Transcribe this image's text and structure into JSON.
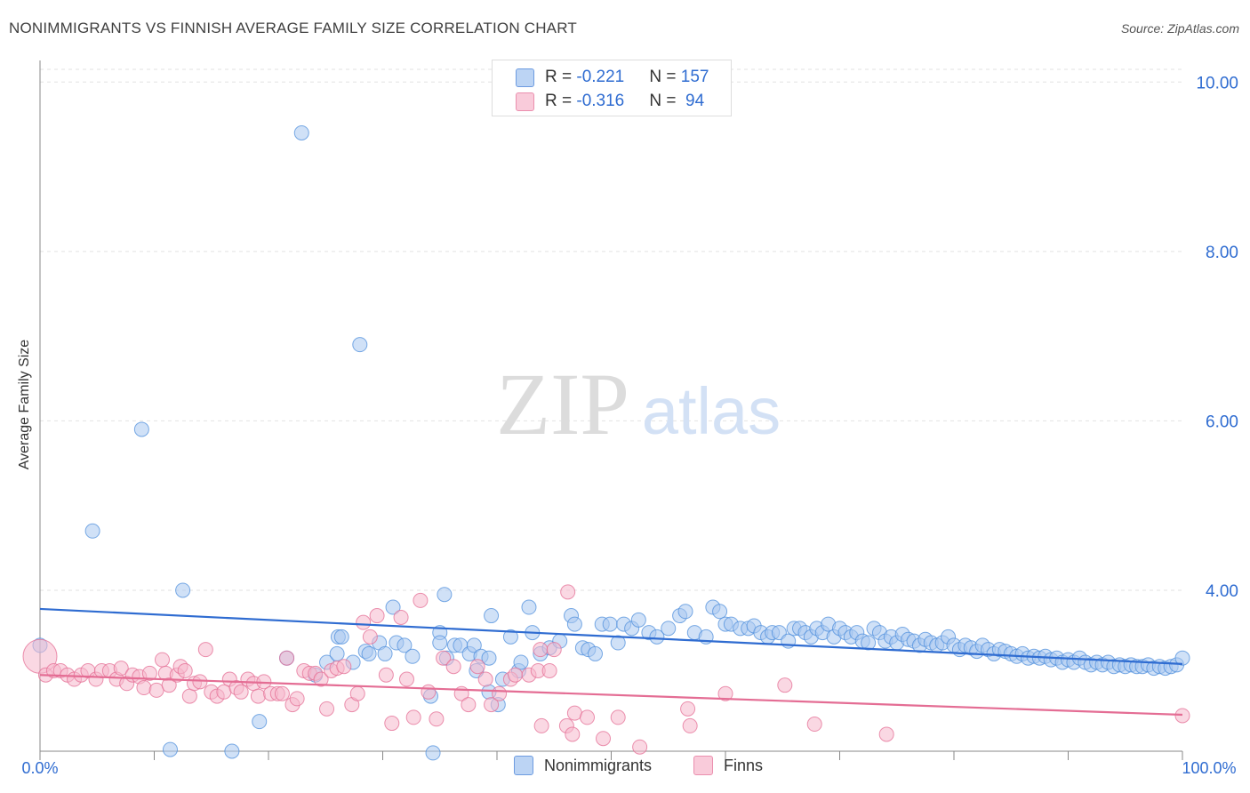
{
  "title": "NONIMMIGRANTS VS FINNISH AVERAGE FAMILY SIZE CORRELATION CHART",
  "source": "Source: ZipAtlas.com",
  "watermark": {
    "zip": "ZIP",
    "atlas": "atlas"
  },
  "legend": {
    "rows": [
      {
        "r_label": "R = ",
        "r_value": "-0.221",
        "n_label": "N = ",
        "n_value": "157",
        "color": "#a9c8f0"
      },
      {
        "r_label": "R = ",
        "r_value": "-0.316",
        "n_label": "N = ",
        "n_value": " 94",
        "color": "#f6b8cc"
      }
    ]
  },
  "bottom_legend": {
    "items": [
      {
        "label": "Nonimmigrants",
        "color": "#a9c8f0"
      },
      {
        "label": "Finns",
        "color": "#f6b8cc"
      }
    ]
  },
  "chart_data": {
    "type": "scatter",
    "title": "NONIMMIGRANTS VS FINNISH AVERAGE FAMILY SIZE CORRELATION CHART",
    "xlabel": "",
    "ylabel": "Average Family Size",
    "xlim": [
      0,
      100
    ],
    "ylim": [
      2.1,
      10.15
    ],
    "x_tick_labels": [
      "0.0%",
      "100.0%"
    ],
    "y_ticks": [
      4,
      6,
      8,
      10
    ],
    "y_tick_labels": [
      "4.00",
      "6.00",
      "8.00",
      "10.00"
    ],
    "grid": true,
    "series": [
      {
        "name": "Nonimmigrants",
        "color": "#4f8fdc",
        "fill": "#a9c8f0",
        "trend": {
          "x": [
            0,
            100
          ],
          "y": [
            3.78,
            3.13
          ]
        },
        "points": [
          [
            0.0,
            3.35
          ],
          [
            4.6,
            4.7
          ],
          [
            8.9,
            5.9
          ],
          [
            12.5,
            4.0
          ],
          [
            22.9,
            9.4
          ],
          [
            28.0,
            6.9
          ],
          [
            11.4,
            2.12
          ],
          [
            16.8,
            2.1
          ],
          [
            19.2,
            2.45
          ],
          [
            21.6,
            3.2
          ],
          [
            24.1,
            3.0
          ],
          [
            25.1,
            3.15
          ],
          [
            26.0,
            3.25
          ],
          [
            26.1,
            3.45
          ],
          [
            26.4,
            3.45
          ],
          [
            27.4,
            3.15
          ],
          [
            28.5,
            3.28
          ],
          [
            28.8,
            3.25
          ],
          [
            29.7,
            3.38
          ],
          [
            30.2,
            3.25
          ],
          [
            30.9,
            3.8
          ],
          [
            31.2,
            3.38
          ],
          [
            31.9,
            3.35
          ],
          [
            32.6,
            3.22
          ],
          [
            34.2,
            2.75
          ],
          [
            34.4,
            2.08
          ],
          [
            35.0,
            3.5
          ],
          [
            35.0,
            3.38
          ],
          [
            35.4,
            3.95
          ],
          [
            35.6,
            3.2
          ],
          [
            36.3,
            3.35
          ],
          [
            36.8,
            3.35
          ],
          [
            37.6,
            3.25
          ],
          [
            38.0,
            3.35
          ],
          [
            38.2,
            3.05
          ],
          [
            38.6,
            3.22
          ],
          [
            39.3,
            3.2
          ],
          [
            39.3,
            2.8
          ],
          [
            39.5,
            3.7
          ],
          [
            40.1,
            2.65
          ],
          [
            40.5,
            2.95
          ],
          [
            41.2,
            3.45
          ],
          [
            41.9,
            3.05
          ],
          [
            42.1,
            3.15
          ],
          [
            42.8,
            3.8
          ],
          [
            43.1,
            3.5
          ],
          [
            43.8,
            3.25
          ],
          [
            44.6,
            3.32
          ],
          [
            45.5,
            3.4
          ],
          [
            46.5,
            3.7
          ],
          [
            46.8,
            3.6
          ],
          [
            47.5,
            3.32
          ],
          [
            48.0,
            3.3
          ],
          [
            48.6,
            3.25
          ],
          [
            49.2,
            3.6
          ],
          [
            49.9,
            3.6
          ],
          [
            50.6,
            3.38
          ],
          [
            51.1,
            3.6
          ],
          [
            51.8,
            3.55
          ],
          [
            52.4,
            3.65
          ],
          [
            53.3,
            3.5
          ],
          [
            54.0,
            3.45
          ],
          [
            55.0,
            3.55
          ],
          [
            56.0,
            3.7
          ],
          [
            56.5,
            3.75
          ],
          [
            57.3,
            3.5
          ],
          [
            58.3,
            3.45
          ],
          [
            58.9,
            3.8
          ],
          [
            59.5,
            3.75
          ],
          [
            60.0,
            3.6
          ],
          [
            60.5,
            3.6
          ],
          [
            61.3,
            3.55
          ],
          [
            62.0,
            3.55
          ],
          [
            62.5,
            3.58
          ],
          [
            63.1,
            3.5
          ],
          [
            63.7,
            3.45
          ],
          [
            64.1,
            3.5
          ],
          [
            64.7,
            3.5
          ],
          [
            65.5,
            3.4
          ],
          [
            66.0,
            3.55
          ],
          [
            66.5,
            3.55
          ],
          [
            67.0,
            3.5
          ],
          [
            67.5,
            3.45
          ],
          [
            68.0,
            3.55
          ],
          [
            68.5,
            3.5
          ],
          [
            69.0,
            3.6
          ],
          [
            69.5,
            3.45
          ],
          [
            70.0,
            3.55
          ],
          [
            70.5,
            3.5
          ],
          [
            71.0,
            3.45
          ],
          [
            71.5,
            3.5
          ],
          [
            72.0,
            3.4
          ],
          [
            72.5,
            3.38
          ],
          [
            73.0,
            3.55
          ],
          [
            73.5,
            3.5
          ],
          [
            74.0,
            3.4
          ],
          [
            74.5,
            3.45
          ],
          [
            75.0,
            3.38
          ],
          [
            75.5,
            3.48
          ],
          [
            76.0,
            3.42
          ],
          [
            76.5,
            3.4
          ],
          [
            77.0,
            3.35
          ],
          [
            77.5,
            3.42
          ],
          [
            78.0,
            3.38
          ],
          [
            78.5,
            3.35
          ],
          [
            79.0,
            3.38
          ],
          [
            79.5,
            3.45
          ],
          [
            80.0,
            3.35
          ],
          [
            80.5,
            3.3
          ],
          [
            81.0,
            3.35
          ],
          [
            81.5,
            3.32
          ],
          [
            82.0,
            3.28
          ],
          [
            82.5,
            3.35
          ],
          [
            83.0,
            3.3
          ],
          [
            83.5,
            3.25
          ],
          [
            84.0,
            3.3
          ],
          [
            84.5,
            3.28
          ],
          [
            85.0,
            3.25
          ],
          [
            85.5,
            3.22
          ],
          [
            86.0,
            3.25
          ],
          [
            86.5,
            3.2
          ],
          [
            87.0,
            3.22
          ],
          [
            87.5,
            3.2
          ],
          [
            88.0,
            3.22
          ],
          [
            88.5,
            3.18
          ],
          [
            89.0,
            3.2
          ],
          [
            89.5,
            3.15
          ],
          [
            90.0,
            3.18
          ],
          [
            90.5,
            3.15
          ],
          [
            91.0,
            3.2
          ],
          [
            91.5,
            3.15
          ],
          [
            92.0,
            3.12
          ],
          [
            92.5,
            3.15
          ],
          [
            93.0,
            3.12
          ],
          [
            93.5,
            3.15
          ],
          [
            94.0,
            3.1
          ],
          [
            94.5,
            3.12
          ],
          [
            95.0,
            3.1
          ],
          [
            95.5,
            3.12
          ],
          [
            96.0,
            3.1
          ],
          [
            96.5,
            3.1
          ],
          [
            97.0,
            3.12
          ],
          [
            97.5,
            3.08
          ],
          [
            98.0,
            3.1
          ],
          [
            98.5,
            3.08
          ],
          [
            99.0,
            3.1
          ],
          [
            99.5,
            3.12
          ],
          [
            100.0,
            3.2
          ]
        ]
      },
      {
        "name": "Finns",
        "color": "#e46d94",
        "fill": "#f6b8cc",
        "trend": {
          "x": [
            0,
            100
          ],
          "y": [
            3.0,
            2.53
          ]
        },
        "points": [
          [
            0.0,
            3.22
          ],
          [
            0.5,
            3.0
          ],
          [
            1.2,
            3.05
          ],
          [
            1.8,
            3.05
          ],
          [
            2.4,
            3.0
          ],
          [
            3.0,
            2.95
          ],
          [
            3.6,
            3.0
          ],
          [
            4.2,
            3.05
          ],
          [
            4.9,
            2.95
          ],
          [
            5.4,
            3.05
          ],
          [
            6.1,
            3.05
          ],
          [
            6.7,
            2.95
          ],
          [
            7.1,
            3.08
          ],
          [
            7.6,
            2.9
          ],
          [
            8.1,
            3.0
          ],
          [
            8.7,
            2.98
          ],
          [
            9.1,
            2.85
          ],
          [
            9.6,
            3.02
          ],
          [
            10.2,
            2.82
          ],
          [
            10.7,
            3.18
          ],
          [
            11.0,
            3.02
          ],
          [
            11.3,
            2.88
          ],
          [
            12.0,
            3.0
          ],
          [
            12.3,
            3.1
          ],
          [
            12.7,
            3.05
          ],
          [
            13.1,
            2.75
          ],
          [
            13.5,
            2.9
          ],
          [
            14.0,
            2.92
          ],
          [
            14.5,
            3.3
          ],
          [
            15.0,
            2.8
          ],
          [
            15.5,
            2.75
          ],
          [
            16.1,
            2.8
          ],
          [
            16.6,
            2.95
          ],
          [
            17.2,
            2.85
          ],
          [
            17.6,
            2.8
          ],
          [
            18.2,
            2.95
          ],
          [
            18.7,
            2.9
          ],
          [
            19.1,
            2.75
          ],
          [
            19.6,
            2.92
          ],
          [
            20.2,
            2.78
          ],
          [
            20.8,
            2.78
          ],
          [
            21.2,
            2.78
          ],
          [
            21.6,
            3.2
          ],
          [
            22.1,
            2.65
          ],
          [
            22.5,
            2.72
          ],
          [
            23.1,
            3.05
          ],
          [
            23.6,
            3.02
          ],
          [
            24.1,
            3.02
          ],
          [
            24.6,
            2.95
          ],
          [
            25.1,
            2.6
          ],
          [
            25.5,
            3.05
          ],
          [
            26.0,
            3.08
          ],
          [
            26.6,
            3.1
          ],
          [
            27.3,
            2.65
          ],
          [
            27.8,
            2.78
          ],
          [
            28.3,
            3.62
          ],
          [
            28.9,
            3.45
          ],
          [
            29.5,
            3.7
          ],
          [
            30.3,
            3.0
          ],
          [
            30.8,
            2.43
          ],
          [
            31.6,
            3.68
          ],
          [
            32.1,
            2.95
          ],
          [
            32.7,
            2.5
          ],
          [
            33.3,
            3.88
          ],
          [
            34.0,
            2.8
          ],
          [
            34.7,
            2.48
          ],
          [
            35.3,
            3.2
          ],
          [
            36.2,
            3.1
          ],
          [
            36.9,
            2.78
          ],
          [
            37.5,
            2.65
          ],
          [
            38.3,
            3.1
          ],
          [
            39.0,
            2.95
          ],
          [
            39.5,
            2.65
          ],
          [
            40.2,
            2.78
          ],
          [
            41.2,
            2.95
          ],
          [
            41.6,
            3.0
          ],
          [
            42.8,
            3.0
          ],
          [
            43.6,
            3.05
          ],
          [
            43.8,
            3.3
          ],
          [
            43.9,
            2.4
          ],
          [
            44.6,
            3.05
          ],
          [
            45.0,
            3.3
          ],
          [
            46.1,
            2.4
          ],
          [
            46.6,
            2.3
          ],
          [
            46.8,
            2.55
          ],
          [
            46.2,
            3.98
          ],
          [
            47.9,
            2.5
          ],
          [
            49.3,
            2.25
          ],
          [
            50.6,
            2.5
          ],
          [
            52.5,
            2.15
          ],
          [
            56.7,
            2.6
          ],
          [
            56.9,
            2.4
          ],
          [
            60.0,
            2.78
          ],
          [
            65.2,
            2.88
          ],
          [
            67.8,
            2.42
          ],
          [
            74.1,
            2.3
          ],
          [
            100.0,
            2.52
          ]
        ]
      }
    ]
  }
}
